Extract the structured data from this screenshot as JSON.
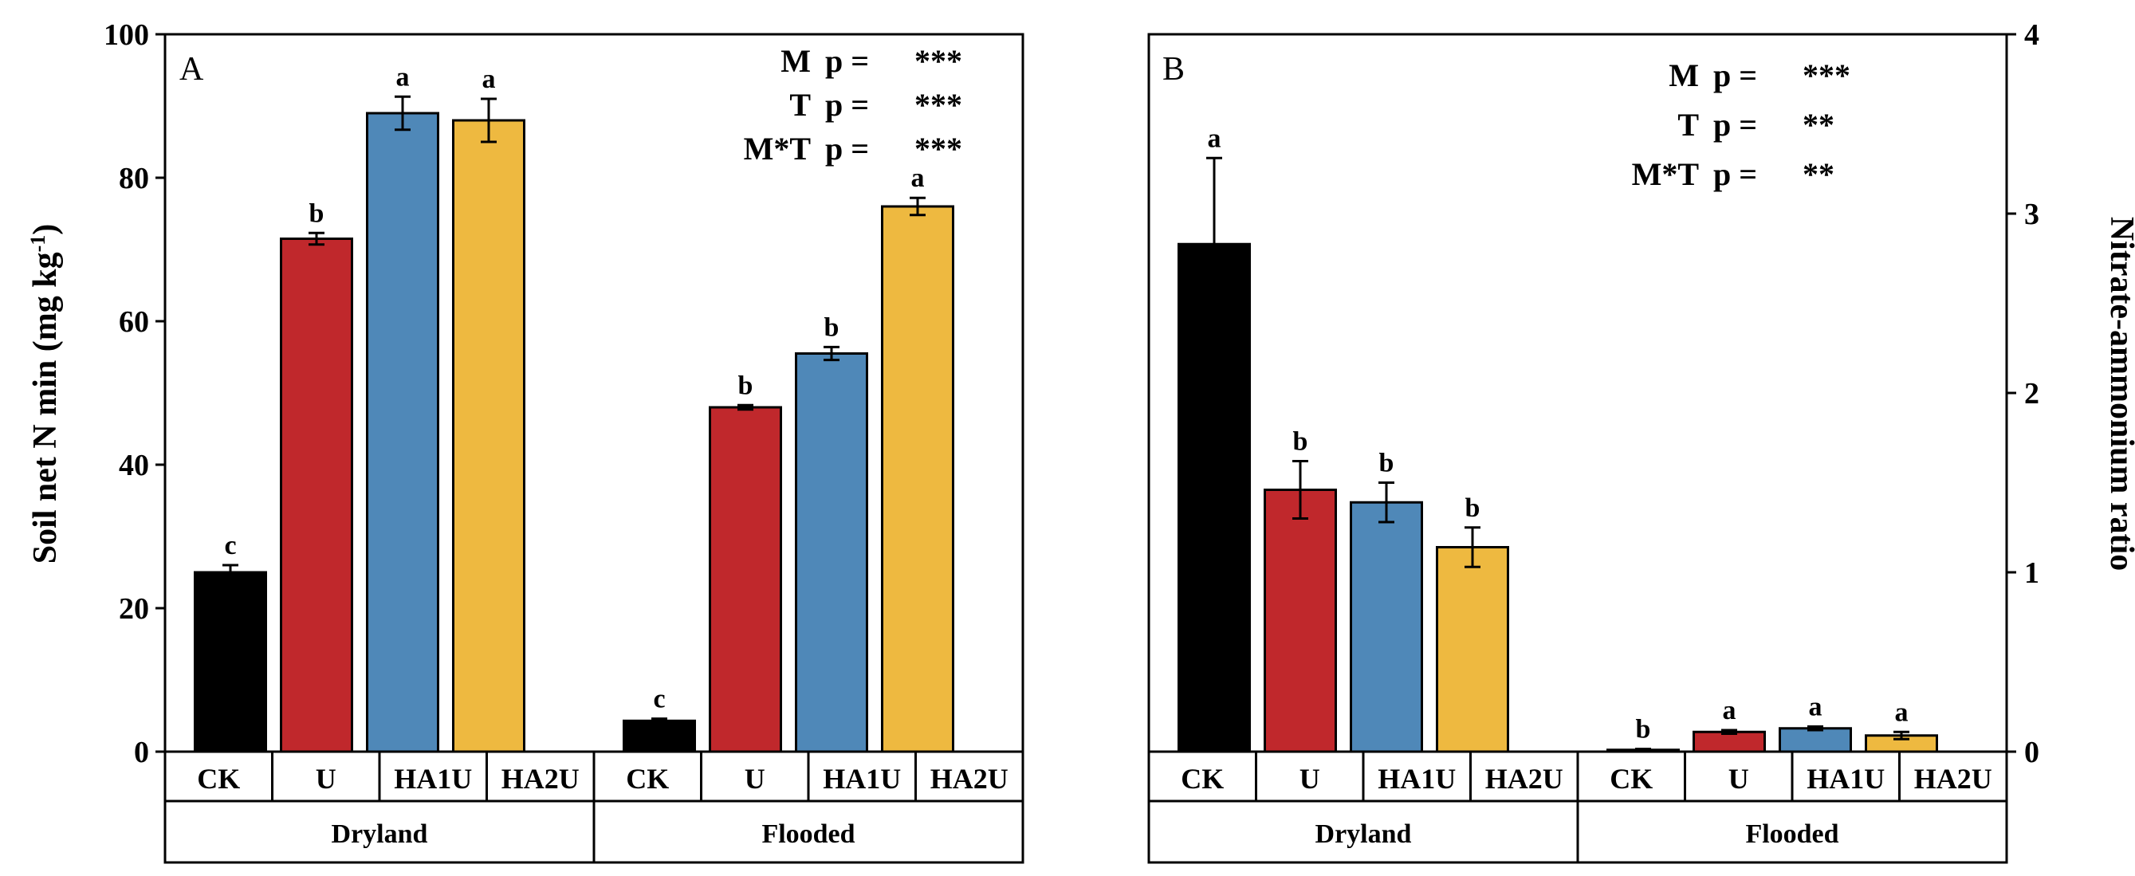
{
  "colors": {
    "CK": "#000000",
    "U": "#c0282c",
    "HA1U": "#4f88b8",
    "HA2U": "#eeb940"
  },
  "chart_data": [
    {
      "type": "bar",
      "panel_label": "A",
      "ylabel": "Soil net N min (mg kg",
      "ylabel_sup": "-1",
      "ylabel_end": ")",
      "ylim": [
        0,
        100
      ],
      "yticks": [
        "0",
        "20",
        "40",
        "60",
        "80",
        "100"
      ],
      "groups": [
        "Dryland",
        "Flooded"
      ],
      "categories": [
        "CK",
        "U",
        "HA1U",
        "HA2U",
        "CK",
        "U",
        "HA1U",
        "HA2U"
      ],
      "series_keys": [
        "CK",
        "U",
        "HA1U",
        "HA2U",
        "CK",
        "U",
        "HA1U",
        "HA2U"
      ],
      "values": [
        25,
        71.5,
        89,
        88,
        4.3,
        48,
        55.5,
        76
      ],
      "errors": [
        1.0,
        0.8,
        2.3,
        3.0,
        0.3,
        0.3,
        0.9,
        1.2
      ],
      "letters": [
        "c",
        "b",
        "a",
        "a",
        "c",
        "b",
        "b",
        "a"
      ],
      "stats": [
        {
          "term": "M",
          "p": "p =",
          "sig": "***"
        },
        {
          "term": "T",
          "p": "p =",
          "sig": "***"
        },
        {
          "term": "M*T",
          "p": "p =",
          "sig": "***"
        }
      ]
    },
    {
      "type": "bar",
      "panel_label": "B",
      "ylabel": "Nitrate-ammonium ratio",
      "ylim": [
        0,
        4
      ],
      "yticks": [
        "0",
        "1",
        "2",
        "3",
        "4"
      ],
      "groups": [
        "Dryland",
        "Flooded"
      ],
      "categories": [
        "CK",
        "U",
        "HA1U",
        "HA2U",
        "CK",
        "U",
        "HA1U",
        "HA2U"
      ],
      "series_keys": [
        "CK",
        "U",
        "HA1U",
        "HA2U",
        "CK",
        "U",
        "HA1U",
        "HA2U"
      ],
      "values": [
        2.83,
        1.46,
        1.39,
        1.14,
        0.01,
        0.11,
        0.13,
        0.09
      ],
      "errors": [
        0.48,
        0.16,
        0.11,
        0.11,
        0.005,
        0.01,
        0.01,
        0.02
      ],
      "letters": [
        "a",
        "b",
        "b",
        "b",
        "b",
        "a",
        "a",
        "a"
      ],
      "stats": [
        {
          "term": "M",
          "p": "p =",
          "sig": "***"
        },
        {
          "term": "T",
          "p": "p =",
          "sig": "**"
        },
        {
          "term": "M*T",
          "p": "p =",
          "sig": "**"
        }
      ]
    }
  ]
}
